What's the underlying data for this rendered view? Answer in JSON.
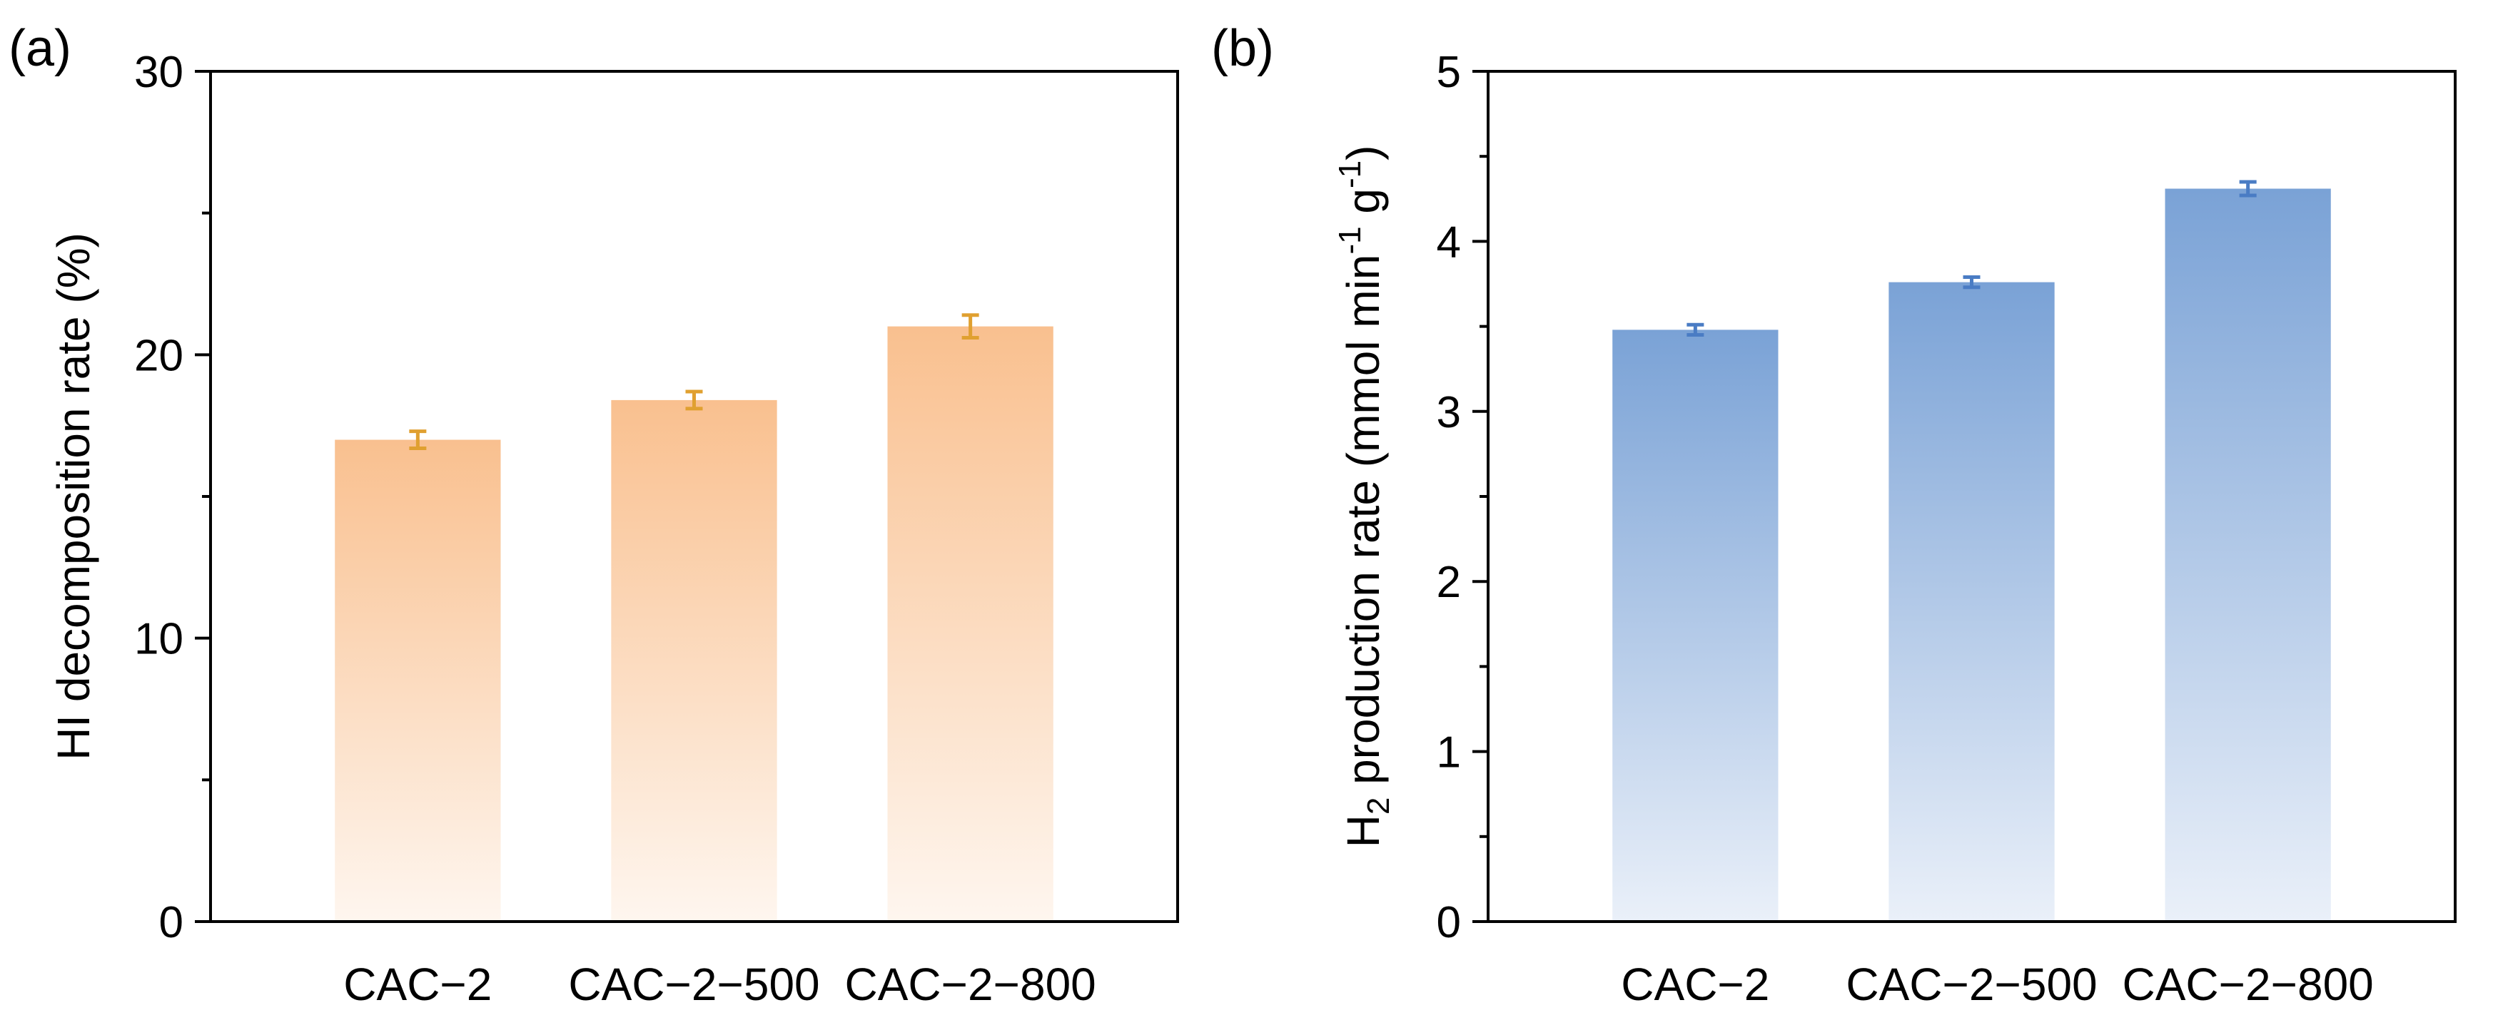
{
  "chart_data": [
    {
      "panel": "(a)",
      "type": "bar",
      "categories": [
        "CAC−2",
        "CAC−2−500",
        "CAC−2−800"
      ],
      "values": [
        17.0,
        18.4,
        21.0
      ],
      "errors": [
        0.3,
        0.3,
        0.4
      ],
      "ylabel": "HI decomposition rate (%)",
      "xlabel": "",
      "ylim": [
        0,
        30
      ],
      "yticks": [
        "0",
        "10",
        "20",
        "30"
      ],
      "ytick_values": [
        0,
        10,
        20,
        30
      ],
      "minor_ticks": [
        5,
        15,
        25
      ],
      "colors": {
        "bar_top": "#f9c08f",
        "bar_bottom": "#fef6ef",
        "error": "#e0a030"
      }
    },
    {
      "panel": "(b)",
      "type": "bar",
      "categories": [
        "CAC−2",
        "CAC−2−500",
        "CAC−2−800"
      ],
      "values": [
        3.48,
        3.76,
        4.31
      ],
      "errors": [
        0.03,
        0.03,
        0.04
      ],
      "ylabel_main": "H",
      "ylabel_sub": "2",
      "ylabel_rest": " production rate (mmol min",
      "ylabel_sup1": "-1",
      "ylabel_mid": " g",
      "ylabel_sup2": "-1",
      "ylabel_end": ")",
      "xlabel": "",
      "ylim": [
        0,
        5
      ],
      "yticks": [
        "0",
        "1",
        "2",
        "3",
        "4",
        "5"
      ],
      "ytick_values": [
        0,
        1,
        2,
        3,
        4,
        5
      ],
      "minor_ticks": [
        0.5,
        1.5,
        2.5,
        3.5,
        4.5
      ],
      "colors": {
        "bar_top": "#7aa2d6",
        "bar_bottom": "#eaf0f9",
        "error": "#4a7cc4"
      }
    }
  ]
}
